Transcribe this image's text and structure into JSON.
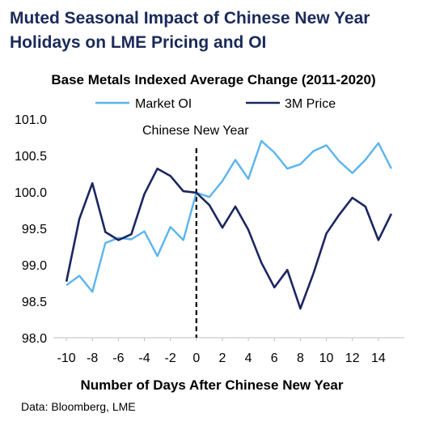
{
  "title": "Muted Seasonal Impact of Chinese New Year Holidays on LME Pricing and OI",
  "source": "Data: Bloomberg, LME",
  "chart_data": {
    "type": "line",
    "title": "Base Metals Indexed Average Change (2011-2020)",
    "xlabel": "Number of Days After Chinese New Year",
    "ylabel": "",
    "xlim": [
      -11,
      16
    ],
    "ylim": [
      98.0,
      101.0
    ],
    "xticks": [
      -10,
      -8,
      -6,
      -4,
      -2,
      0,
      2,
      4,
      6,
      8,
      10,
      12,
      14
    ],
    "yticks": [
      98.0,
      98.5,
      99.0,
      99.5,
      100.0,
      100.5,
      101.0
    ],
    "ytick_labels": [
      "98.0",
      "98.5",
      "99.0",
      "99.5",
      "100.0",
      "100.5",
      "101.0"
    ],
    "grid": false,
    "legend_position": "top",
    "x": [
      -10,
      -9,
      -8,
      -7,
      -6,
      -5,
      -4,
      -3,
      -2,
      -1,
      0,
      1,
      2,
      3,
      4,
      5,
      6,
      7,
      8,
      9,
      10,
      11,
      12,
      13,
      14,
      15
    ],
    "series": [
      {
        "name": "Market OI",
        "color": "#5bb4ee",
        "values": [
          98.72,
          98.85,
          98.63,
          99.3,
          99.37,
          99.35,
          99.46,
          99.12,
          99.52,
          99.34,
          99.99,
          99.93,
          100.15,
          100.44,
          100.18,
          100.7,
          100.54,
          100.32,
          100.38,
          100.56,
          100.64,
          100.42,
          100.26,
          100.44,
          100.67,
          100.32
        ]
      },
      {
        "name": "3M Price",
        "color": "#1c2660",
        "values": [
          98.77,
          99.63,
          100.12,
          99.45,
          99.34,
          99.42,
          99.97,
          100.32,
          100.22,
          100.01,
          99.99,
          99.82,
          99.51,
          99.8,
          99.48,
          99.03,
          98.69,
          98.93,
          98.4,
          98.88,
          99.43,
          99.69,
          99.92,
          99.8,
          99.34,
          99.7
        ]
      }
    ],
    "annotations": [
      {
        "text": "Chinese New Year",
        "x": 0,
        "style": "dashed-vertical-line"
      }
    ]
  }
}
